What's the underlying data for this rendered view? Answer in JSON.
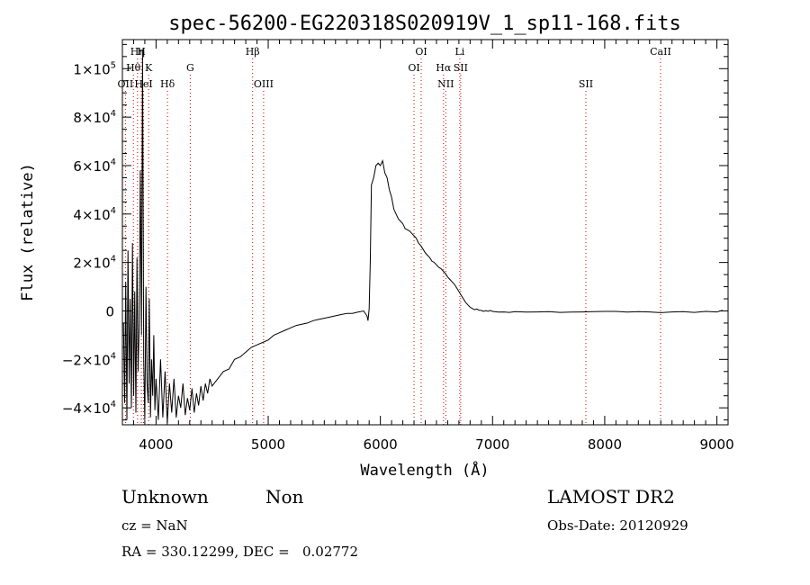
{
  "chart_data": {
    "type": "line",
    "title": "spec-56200-EG220318S020919V_1_sp11-168.fits",
    "xlabel": "Wavelength (Å)",
    "ylabel": "Flux (relative)",
    "xlim": [
      3700,
      9100
    ],
    "ylim": [
      -47000,
      112000
    ],
    "xticks": [
      4000,
      5000,
      6000,
      7000,
      8000,
      9000
    ],
    "yticks": [
      {
        "value": -40000,
        "label": "−4×10",
        "exp": "4"
      },
      {
        "value": -20000,
        "label": "−2×10",
        "exp": "4"
      },
      {
        "value": 0,
        "label": "0",
        "exp": ""
      },
      {
        "value": 20000,
        "label": "2×10",
        "exp": "4"
      },
      {
        "value": 40000,
        "label": "4×10",
        "exp": "4"
      },
      {
        "value": 60000,
        "label": "6×10",
        "exp": "4"
      },
      {
        "value": 80000,
        "label": "8×10",
        "exp": "4"
      },
      {
        "value": 100000,
        "label": "1×10",
        "exp": "5"
      }
    ],
    "line_color": "#000000",
    "marker_color": "#cc0000",
    "markers": [
      {
        "name": "Hη",
        "x": 3835,
        "row": 0
      },
      {
        "name": "H",
        "x": 3869,
        "row": 0
      },
      {
        "name": "Hθ",
        "x": 3798,
        "row": 1
      },
      {
        "name": "K",
        "x": 3934,
        "row": 1
      },
      {
        "name": "G",
        "x": 4305,
        "row": 1
      },
      {
        "name": "OII",
        "x": 3727,
        "row": 2
      },
      {
        "name": "HeI",
        "x": 3889,
        "row": 2
      },
      {
        "name": "Hδ",
        "x": 4102,
        "row": 2
      },
      {
        "name": "Hβ",
        "x": 4861,
        "row": 0
      },
      {
        "name": "OIII",
        "x": 4959,
        "row": 2
      },
      {
        "name": "OI",
        "x": 6364,
        "row": 0
      },
      {
        "name": "OI",
        "x": 6300,
        "row": 1
      },
      {
        "name": "Hα",
        "x": 6563,
        "row": 1
      },
      {
        "name": "NII",
        "x": 6583,
        "row": 2
      },
      {
        "name": "Li",
        "x": 6708,
        "row": 0
      },
      {
        "name": "SII",
        "x": 6716,
        "row": 1
      },
      {
        "name": "SII",
        "x": 7832,
        "row": 2
      },
      {
        "name": "CaII",
        "x": 8498,
        "row": 0
      }
    ],
    "series": [
      {
        "x": [
          3710,
          3720,
          3730,
          3740,
          3750,
          3760,
          3770,
          3780,
          3790,
          3800,
          3810,
          3820,
          3830,
          3840,
          3850,
          3860,
          3870,
          3880,
          3890,
          3900,
          3910,
          3920,
          3930,
          3940,
          3950,
          3960,
          3970,
          3980,
          3990,
          4000,
          4020,
          4040,
          4060,
          4080,
          4100,
          4120,
          4140,
          4160,
          4180,
          4200,
          4220,
          4240,
          4260,
          4280,
          4300,
          4320,
          4340,
          4360,
          4380,
          4400,
          4420,
          4440,
          4460,
          4480,
          4500,
          4550,
          4600,
          4650,
          4700,
          4750,
          4800,
          4850,
          4900,
          4950,
          5000,
          5050,
          5100,
          5150,
          5200,
          5250,
          5300,
          5350,
          5400,
          5450,
          5500,
          5550,
          5600,
          5650,
          5700,
          5750,
          5800,
          5850,
          5880,
          5890,
          5900,
          5910,
          5920,
          5940,
          5960,
          5980,
          6000,
          6020,
          6040,
          6060,
          6080,
          6100,
          6120,
          6140,
          6160,
          6180,
          6200,
          6220,
          6240,
          6260,
          6280,
          6300,
          6320,
          6340,
          6360,
          6380,
          6400,
          6420,
          6440,
          6460,
          6480,
          6500,
          6520,
          6540,
          6560,
          6580,
          6600,
          6620,
          6640,
          6660,
          6680,
          6700,
          6720,
          6740,
          6760,
          6780,
          6800,
          6820,
          6840,
          6860,
          6880,
          6900,
          6920,
          6940,
          6960,
          6980,
          7000,
          7050,
          7100,
          7150,
          7200,
          7300,
          7400,
          7500,
          7600,
          7700,
          7800,
          7900,
          8000,
          8100,
          8200,
          8300,
          8400,
          8500,
          8600,
          8700,
          8800,
          8900,
          9000,
          9050
        ],
        "y": [
          -5000,
          -38000,
          12000,
          -45000,
          25000,
          -30000,
          5000,
          -40000,
          28000,
          -35000,
          8000,
          -42000,
          22000,
          -25000,
          -5000,
          58000,
          -10000,
          108000,
          -20000,
          -45000,
          10000,
          -30000,
          -38000,
          5000,
          -44000,
          -20000,
          -35000,
          -10000,
          -41000,
          -28000,
          -45000,
          -20000,
          -44000,
          -25000,
          -46000,
          -30000,
          -42000,
          -28000,
          -44000,
          -35000,
          -40000,
          -30000,
          -43000,
          -36000,
          -41000,
          -32000,
          -42000,
          -34000,
          -39000,
          -31000,
          -37000,
          -30000,
          -34000,
          -28000,
          -31000,
          -28000,
          -25000,
          -24000,
          -20000,
          -19000,
          -17000,
          -15000,
          -14000,
          -13000,
          -12000,
          -10000,
          -9000,
          -8000,
          -7000,
          -6000,
          -5500,
          -5000,
          -4000,
          -3500,
          -3000,
          -2500,
          -2000,
          -1500,
          -1000,
          -1000,
          -500,
          0,
          -2000,
          -4000,
          1000,
          20000,
          52000,
          55000,
          60000,
          61000,
          60000,
          62000,
          57000,
          55000,
          50000,
          47000,
          42000,
          40000,
          38000,
          37000,
          36000,
          34000,
          33500,
          33000,
          32000,
          31000,
          30000,
          28000,
          27000,
          25500,
          24000,
          23000,
          22000,
          20500,
          20000,
          19000,
          18000,
          17500,
          16500,
          15500,
          14000,
          13000,
          12000,
          11000,
          9500,
          8000,
          6500,
          5000,
          3500,
          2500,
          1500,
          1000,
          500,
          800,
          300,
          200,
          -200,
          100,
          -100,
          200,
          -200,
          -500,
          -400,
          -600,
          -300,
          -500,
          -400,
          -300,
          -600,
          -500,
          -400,
          -300,
          -200,
          -200,
          -500,
          -300,
          -400,
          -700,
          -400,
          -300,
          -600,
          -200,
          -400,
          300
        ]
      }
    ]
  },
  "footer": {
    "object_class": "Unknown",
    "object_subclass": "Non",
    "survey": "LAMOST DR2",
    "redshift": "cz = NaN",
    "obs_date": "Obs-Date: 20120929",
    "coords": "RA = 330.12299, DEC =   0.02772"
  }
}
